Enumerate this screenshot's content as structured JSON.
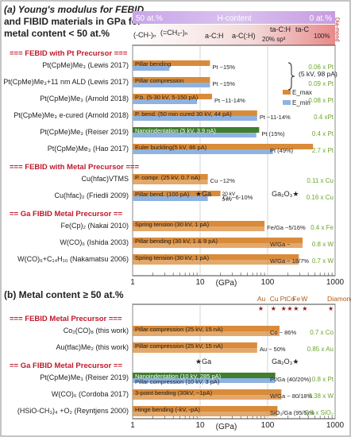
{
  "figure": {
    "panel_a_title_lines": [
      "(a) Young's modulus for FEBID",
      "and FIBID materials in GPa for",
      "metal content < 50 at.%"
    ],
    "panel_b_title": "(b)  Metal content ≥ 50 at.%",
    "h_content_bar": {
      "left": "50 at.%",
      "center": "H-content",
      "right": "0 at.%",
      "regions": [
        "(-CH-)ₙ",
        "(=CH₂-)ₙ",
        "a-C:H",
        "a-C(:H)",
        "ta-C:H",
        "ta-C",
        "20% sp³",
        "100%",
        "Dia-mond"
      ]
    },
    "axis_label": "(GPa)",
    "reference_labels": {
      "ga": "★Ga",
      "ga2o3": "Ga₂O₃★"
    },
    "top_b_labels": [
      "Au",
      "Cu",
      "Pt",
      "Co",
      "Fe",
      "W",
      "Diamond"
    ],
    "legend_b_annotation": "(5 kV, 98 pA)",
    "colors": {
      "e_max": "#d98b3a",
      "e_min": "#8fb3e0",
      "nano": "#3f7f2e",
      "header": "#c0182a",
      "green_text": "#6ca52a",
      "purple": "#7a4fb0"
    }
  },
  "chart_data": [
    {
      "type": "bar",
      "title": "Young's modulus for FEBID and FIBID materials in GPa for metal content < 50 at.%",
      "xlabel": "(GPa)",
      "xscale": "log",
      "xlim": [
        1,
        1000
      ],
      "ticks": [
        "1",
        "10",
        "100",
        "1000"
      ],
      "legend": [
        "E_max",
        "E_min"
      ],
      "groups": [
        {
          "name": "=== FEBID with Pt Precursor ===",
          "rows": [
            {
              "label": "Pt(CpMe)Me₃ (Lewis 2017)",
              "method": "Pillar bending",
              "e_max": 14,
              "e_min": 3.5,
              "content": "Pt ~15%",
              "ratio": "0.06 x Pt"
            },
            {
              "label": "Pt(CpMe)Me₃+11 nm ALD (Lewis 2017)",
              "method": "Pillar compression",
              "e_max": 14,
              "e_min": 14,
              "content": "Pt ~15%",
              "ratio": "0.09 x Pt"
            },
            {
              "label": "Pt(CpMe)Me₃ (Arnold 2018)",
              "method": "P.b. (5-30 kV, 5-150 pA)",
              "e_max": 15,
              "e_min": 9,
              "content": "Pt ~11-14%",
              "ratio": "0.08 x Pt"
            },
            {
              "label": "Pt(CpMe)Me₃ e-cured (Arnold 2018)",
              "method": "P. bend. (50 min cured 30 kV, 44 pA)",
              "e_max": 70,
              "e_min": 70,
              "content": "Pt ~11-14%",
              "ratio": "0.4 xPt"
            },
            {
              "label": "Pt(CpMe)Me₃ (Reiser 2019)",
              "method": "Nanoindentation (5 kV, 3.9 nA)",
              "e_max": 75,
              "e_min": 68,
              "content": "Pt (15%)",
              "ratio": "0.4 x Pt"
            },
            {
              "label": "Pt(CpMe)Me₃ (Hao 2017)",
              "method": "Euler buckling(5 kV, 86 pA)",
              "e_max": 470,
              "e_min": 120,
              "content": "Pt (49%)",
              "ratio": "2.7 x Pt"
            }
          ]
        },
        {
          "name": "=== FEBID with Metal Precursor ===",
          "rows": [
            {
              "label": "Cu(hfac)VTMS",
              "method": "P. compr. (25 kV, 0.7 nA)",
              "e_max": 13,
              "e_min": null,
              "content": "Cu ~12%",
              "ratio": "0.11 x Cu"
            },
            {
              "label": "Cu(hfac)₂ (Friedli 2009)",
              "method": "Pillar bend. (100 pA)",
              "e_max": 20,
              "e_min": 13,
              "content": "Cu ~6-10%",
              "ratio": "0.16 x Cu",
              "extra": [
                "20 kV",
                "5 kV"
              ]
            }
          ]
        },
        {
          "name": "== Ga FIBID Metal Precursor ==",
          "rows": [
            {
              "label": "Fe(Cp)₂ (Nakai 2010)",
              "method": "Spring tension (30 kV, 1 pA)",
              "e_max": 90,
              "e_min": null,
              "content": "Fe/Ga ~5/16%",
              "ratio": "0.4 x Fe"
            },
            {
              "label": "W(CO)₆ (Ishida 2003)",
              "method": "Pillar bending (30 kV, 1 & 9 pA)",
              "e_max": 330,
              "e_min": null,
              "content": "W/Ga ~",
              "ratio": "0.8 x W"
            },
            {
              "label": "W(CO)₆+C₁₄H₁₀ (Nakamatsu 2006)",
              "method": "Spring tension (30 kV, 1 pA)",
              "e_max": 290,
              "e_min": null,
              "content": "W/Ga ~ 18/7%",
              "ratio": "0.7 x W"
            }
          ]
        }
      ]
    },
    {
      "type": "bar",
      "title": "Metal content ≥ 50 at.%",
      "xlabel": "(GPa)",
      "xscale": "log",
      "xlim": [
        1,
        1000
      ],
      "ticks": [
        "1",
        "10",
        "100",
        "1000"
      ],
      "groups": [
        {
          "name": "=== FEBID Metal Precursor ===",
          "rows": [
            {
              "label": "Co₂(CO)₈ (this work)",
              "method": "Pillar compression (25 kV, 15 nA)",
              "e_max": 150,
              "e_min": null,
              "content": "Co ~ 86%",
              "ratio": "0.7 x Co"
            },
            {
              "label": "Au(tfac)Me₂ (this work)",
              "method": "Pillar compression (25 kV, 15 nA)",
              "e_max": 70,
              "e_min": null,
              "content": "Au ~ 50%",
              "ratio": "0.85 x Au"
            }
          ]
        },
        {
          "name": "== Ga FIBID Metal Precursor ==",
          "rows": [
            {
              "label": "Pt(CpMe)Me₃ (Reiser 2019)",
              "method": "Nanoindentation (10 kV, 285 pA)",
              "e_max": 130,
              "e_min": 128,
              "content": "Pt/Ga (40/20%)",
              "ratio": "0.8 x Pt",
              "min_method": "Pillar compression (10 kV, 3 pA)"
            },
            {
              "label": "W(CO)₆ (Cordoba 2017)",
              "method": "3-point bending (30kV, ~1pA)",
              "e_max": 160,
              "e_min": null,
              "content": "W/Ga ~ 80/18%",
              "ratio": "0.38 x W"
            },
            {
              "label": "(HSiO-CH₃)₄ +O₂ (Reyntjens 2000)",
              "method": "Hinge bending (-kV, -pA)",
              "e_max": 140,
              "e_min": null,
              "content": "SiO₂/Ga (95/5)%",
              "ratio": "0.8 x SiO₂"
            }
          ]
        }
      ]
    }
  ]
}
